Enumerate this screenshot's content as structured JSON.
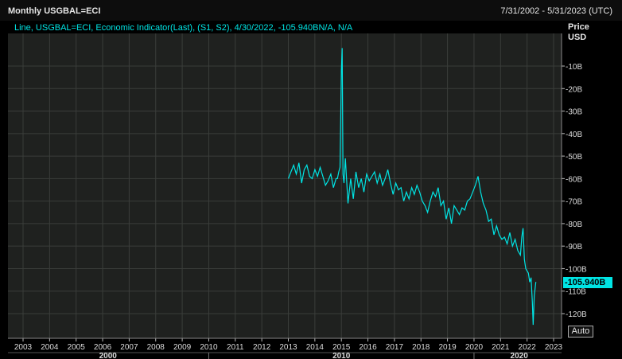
{
  "header": {
    "title": "Monthly USGBAL=ECI",
    "date_range": "7/31/2002 - 5/31/2023 (UTC)"
  },
  "legend": {
    "text": "Line, USGBAL=ECI, Economic Indicator(Last), (S1, S2), 4/30/2022, -105.940BN/A, N/A"
  },
  "axis": {
    "price_label": "Price",
    "currency_label": "USD",
    "last_value": "-105.940B",
    "auto_label": "Auto"
  },
  "colors": {
    "line": "#00e5e5",
    "plot_bg": "#1f211f",
    "grid": "#3a3d3a"
  },
  "chart_data": {
    "type": "line",
    "title": "Monthly USGBAL=ECI",
    "xlabel": "",
    "ylabel": "Price USD",
    "xlim": [
      2002.58,
      2023.41
    ],
    "ylim": [
      -130,
      5
    ],
    "y_ticks": [
      -10,
      -20,
      -30,
      -40,
      -50,
      -60,
      -70,
      -80,
      -90,
      -100,
      -110,
      -120
    ],
    "y_tick_labels": [
      "-10B",
      "-20B",
      "-30B",
      "-40B",
      "-50B",
      "-60B",
      "-70B",
      "-80B",
      "-90B",
      "-100B",
      "-110B",
      "-120B"
    ],
    "x_ticks": [
      2003,
      2004,
      2005,
      2006,
      2007,
      2008,
      2009,
      2010,
      2011,
      2012,
      2013,
      2014,
      2015,
      2016,
      2017,
      2018,
      2019,
      2020,
      2021,
      2022,
      2023
    ],
    "x_tick_labels": [
      "2003",
      "2004",
      "2005",
      "2006",
      "2007",
      "2008",
      "2009",
      "2010",
      "2011",
      "2012",
      "2013",
      "2014",
      "2015",
      "2016",
      "2017",
      "2018",
      "2019",
      "2020",
      "2021",
      "2022",
      "2023"
    ],
    "decade_labels": [
      {
        "label": "2000",
        "x": 2006.2
      },
      {
        "label": "2010",
        "x": 2015.0
      },
      {
        "label": "2020",
        "x": 2021.7
      }
    ],
    "grid": true,
    "series": [
      {
        "values": [
          [
            2013.0,
            -60
          ],
          [
            2013.1,
            -57
          ],
          [
            2013.2,
            -54
          ],
          [
            2013.3,
            -58
          ],
          [
            2013.4,
            -53
          ],
          [
            2013.5,
            -62
          ],
          [
            2013.6,
            -56
          ],
          [
            2013.7,
            -54
          ],
          [
            2013.8,
            -59
          ],
          [
            2013.9,
            -60
          ],
          [
            2014.0,
            -56
          ],
          [
            2014.1,
            -59
          ],
          [
            2014.2,
            -55
          ],
          [
            2014.3,
            -59
          ],
          [
            2014.4,
            -63
          ],
          [
            2014.5,
            -61
          ],
          [
            2014.6,
            -58
          ],
          [
            2014.7,
            -64
          ],
          [
            2014.8,
            -60
          ],
          [
            2014.85,
            -60
          ],
          [
            2014.9,
            -57
          ],
          [
            2014.95,
            -55
          ],
          [
            2015.0,
            -12
          ],
          [
            2015.03,
            -2
          ],
          [
            2015.06,
            -58
          ],
          [
            2015.1,
            -62
          ],
          [
            2015.15,
            -51
          ],
          [
            2015.25,
            -71
          ],
          [
            2015.35,
            -60
          ],
          [
            2015.45,
            -69
          ],
          [
            2015.55,
            -57
          ],
          [
            2015.65,
            -64
          ],
          [
            2015.75,
            -60
          ],
          [
            2015.85,
            -66
          ],
          [
            2015.95,
            -58
          ],
          [
            2016.05,
            -61
          ],
          [
            2016.15,
            -59
          ],
          [
            2016.25,
            -57
          ],
          [
            2016.35,
            -62
          ],
          [
            2016.45,
            -58
          ],
          [
            2016.55,
            -63
          ],
          [
            2016.65,
            -60
          ],
          [
            2016.75,
            -56
          ],
          [
            2016.85,
            -62
          ],
          [
            2016.95,
            -67
          ],
          [
            2017.05,
            -62
          ],
          [
            2017.15,
            -65
          ],
          [
            2017.25,
            -64
          ],
          [
            2017.35,
            -70
          ],
          [
            2017.45,
            -66
          ],
          [
            2017.55,
            -69
          ],
          [
            2017.65,
            -64
          ],
          [
            2017.75,
            -67
          ],
          [
            2017.85,
            -63
          ],
          [
            2017.95,
            -66
          ],
          [
            2018.05,
            -70
          ],
          [
            2018.15,
            -72
          ],
          [
            2018.25,
            -75
          ],
          [
            2018.35,
            -70
          ],
          [
            2018.45,
            -66
          ],
          [
            2018.55,
            -68
          ],
          [
            2018.65,
            -64
          ],
          [
            2018.75,
            -72
          ],
          [
            2018.85,
            -70
          ],
          [
            2018.95,
            -78
          ],
          [
            2019.05,
            -73
          ],
          [
            2019.15,
            -80
          ],
          [
            2019.25,
            -72
          ],
          [
            2019.35,
            -74
          ],
          [
            2019.45,
            -76
          ],
          [
            2019.55,
            -73
          ],
          [
            2019.65,
            -74
          ],
          [
            2019.75,
            -70
          ],
          [
            2019.85,
            -69
          ],
          [
            2019.95,
            -66
          ],
          [
            2020.05,
            -63
          ],
          [
            2020.15,
            -59
          ],
          [
            2020.25,
            -66
          ],
          [
            2020.35,
            -71
          ],
          [
            2020.45,
            -74
          ],
          [
            2020.55,
            -79
          ],
          [
            2020.65,
            -78
          ],
          [
            2020.75,
            -85
          ],
          [
            2020.85,
            -81
          ],
          [
            2020.95,
            -85
          ],
          [
            2021.05,
            -87
          ],
          [
            2021.15,
            -86
          ],
          [
            2021.25,
            -89
          ],
          [
            2021.35,
            -84
          ],
          [
            2021.45,
            -90
          ],
          [
            2021.55,
            -87
          ],
          [
            2021.65,
            -92
          ],
          [
            2021.75,
            -94
          ],
          [
            2021.8,
            -86
          ],
          [
            2021.85,
            -82
          ],
          [
            2021.9,
            -96
          ],
          [
            2021.95,
            -100
          ],
          [
            2022.05,
            -102
          ],
          [
            2022.1,
            -106
          ],
          [
            2022.15,
            -104
          ],
          [
            2022.2,
            -115
          ],
          [
            2022.23,
            -125
          ],
          [
            2022.27,
            -112
          ],
          [
            2022.33,
            -105.94
          ]
        ]
      }
    ]
  }
}
